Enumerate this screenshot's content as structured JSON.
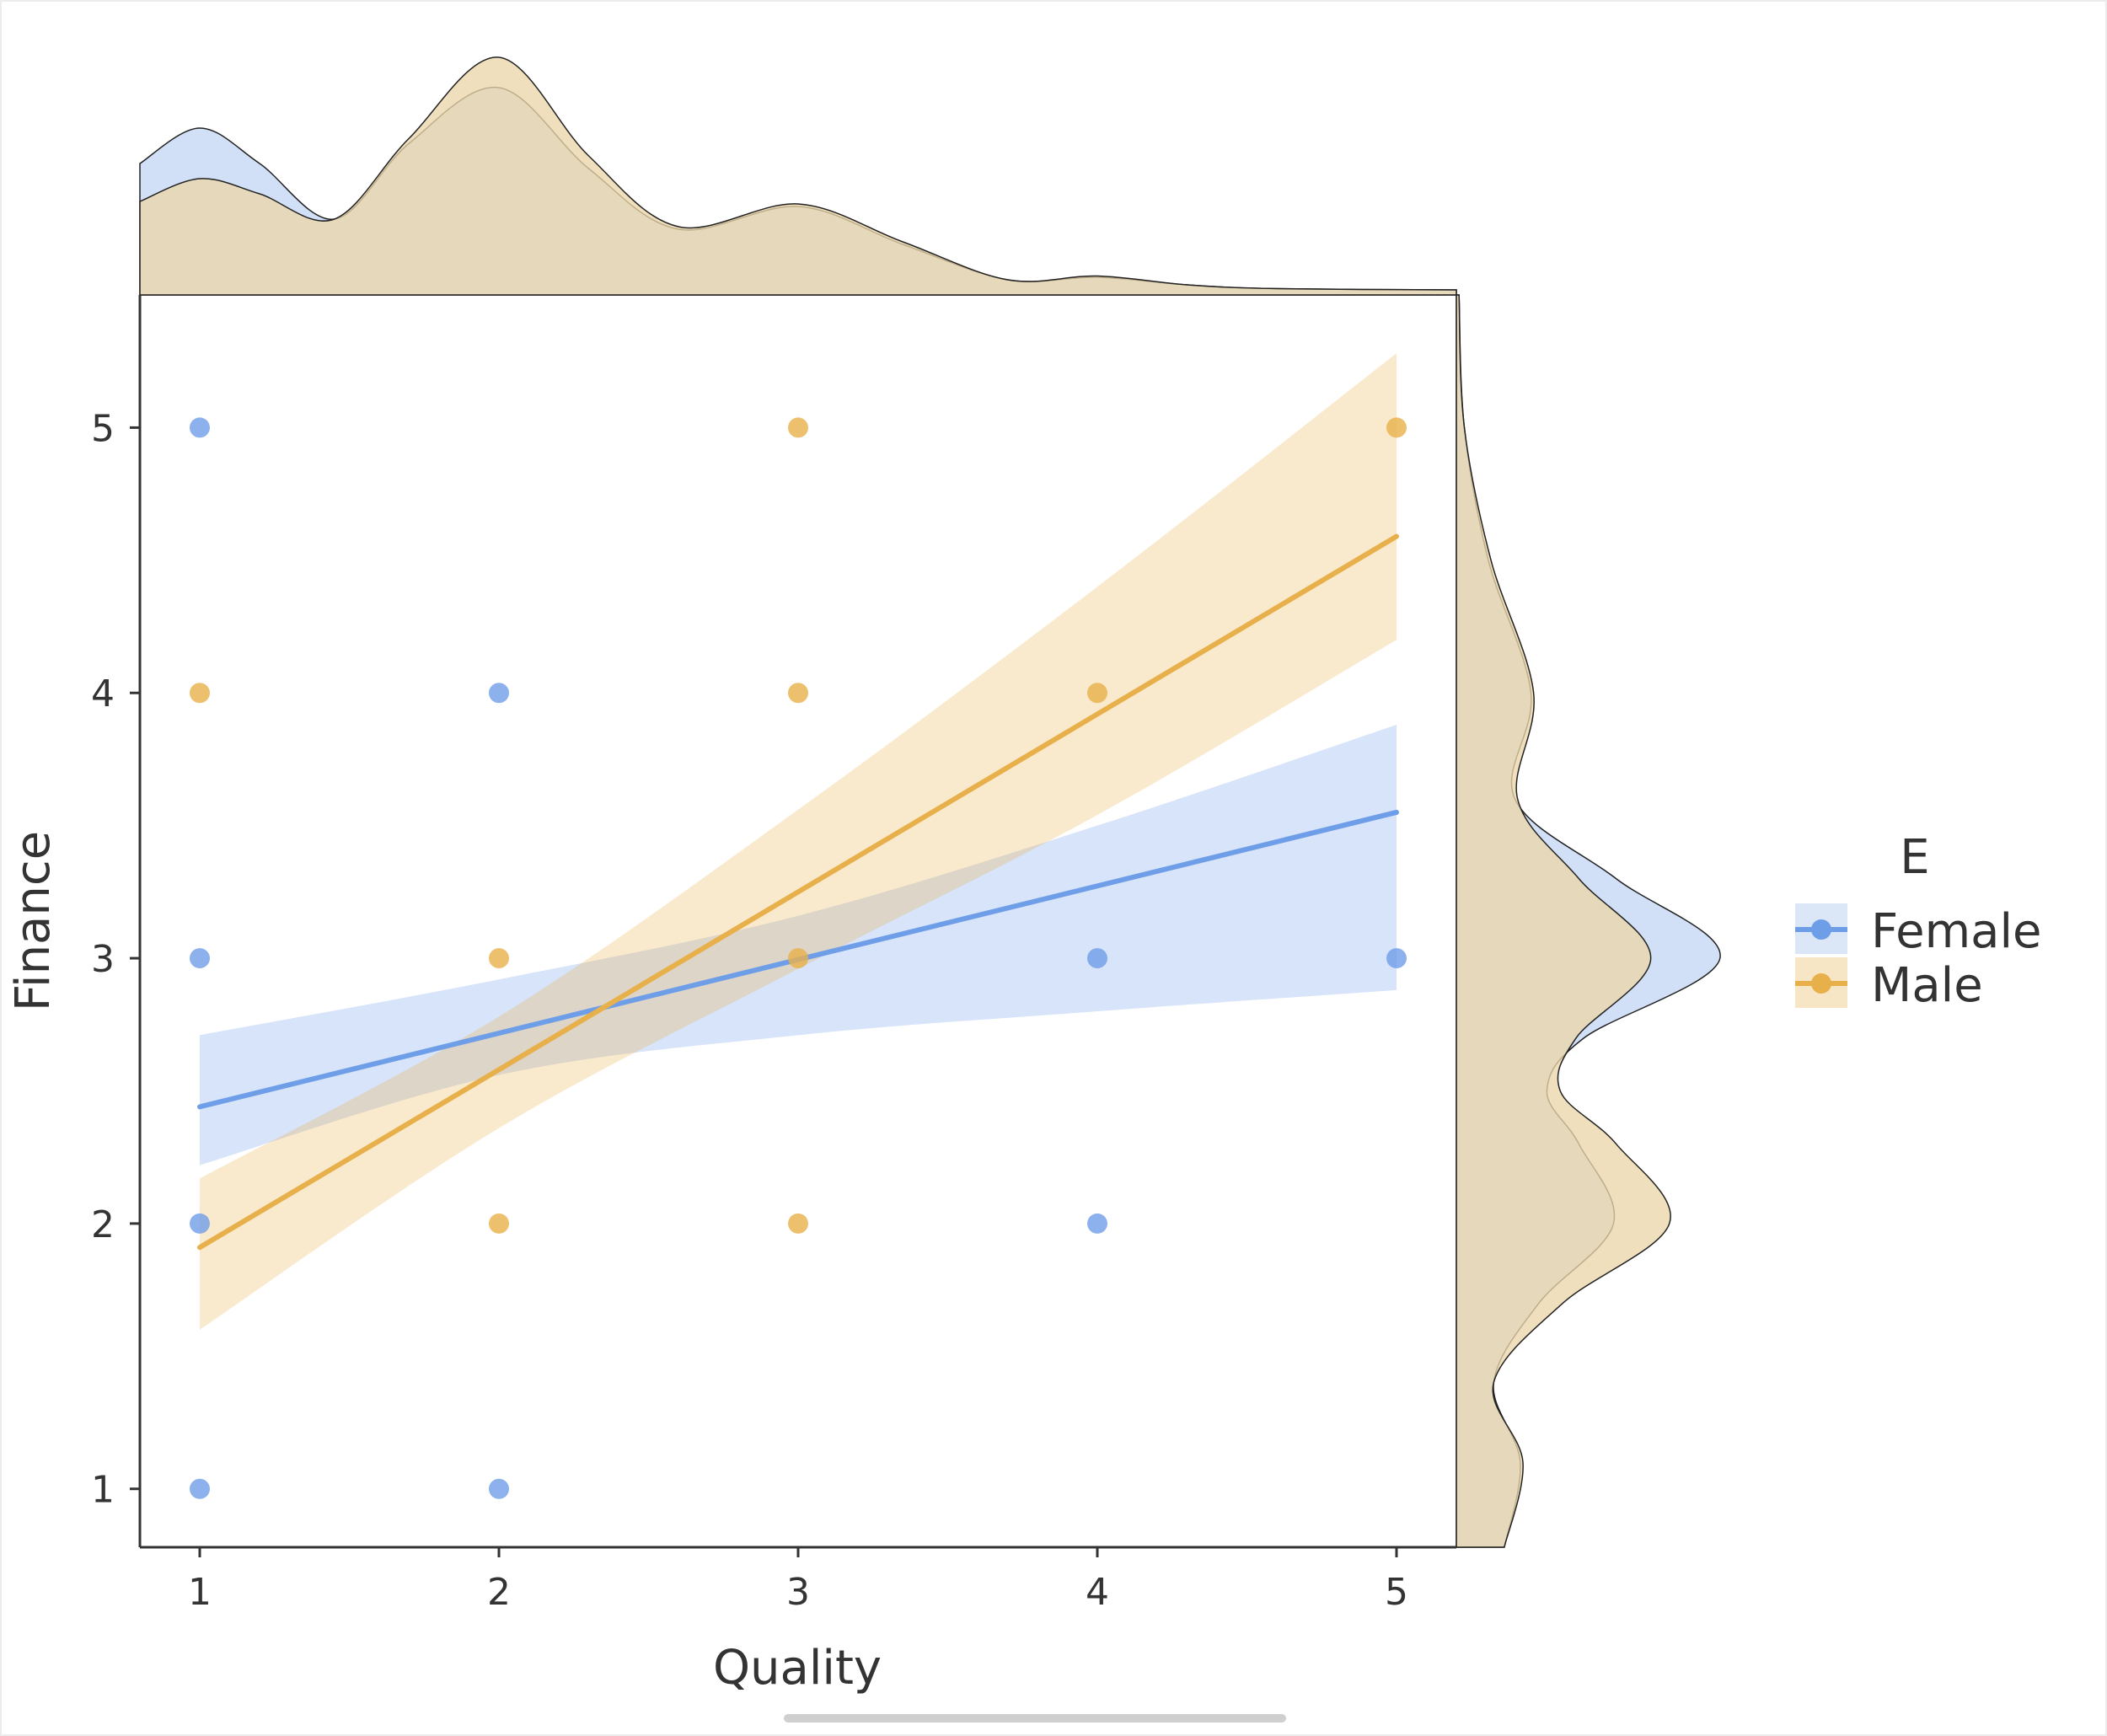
{
  "chart_data": {
    "type": "scatter",
    "title": "",
    "xlabel": "Quality",
    "ylabel": "Finance",
    "xlim": [
      0.8,
      5.2
    ],
    "ylim": [
      0.78,
      5.5
    ],
    "xticks": [
      "1",
      "2",
      "3",
      "4",
      "5"
    ],
    "yticks": [
      "1",
      "2",
      "3",
      "4",
      "5"
    ],
    "grid": false,
    "legend": {
      "title": "E",
      "placement": "right"
    },
    "marginals": {
      "top": "kde of Quality by E",
      "right": "kde of Finance by E"
    },
    "series": [
      {
        "name": "Female",
        "color": "#6f9ee8",
        "points": [
          [
            1,
            5
          ],
          [
            1,
            3
          ],
          [
            1,
            2
          ],
          [
            1,
            1
          ],
          [
            2,
            4
          ],
          [
            2,
            1
          ],
          [
            4,
            3
          ],
          [
            4,
            2
          ],
          [
            5,
            3
          ]
        ],
        "fit": {
          "x0": 1,
          "y0": 2.44,
          "x1": 5,
          "y1": 3.55
        },
        "ci_upper": [
          [
            1,
            2.71
          ],
          [
            2,
            2.92
          ],
          [
            3,
            3.16
          ],
          [
            4,
            3.5
          ],
          [
            5,
            3.88
          ]
        ],
        "ci_lower": [
          [
            1,
            2.22
          ],
          [
            2,
            2.56
          ],
          [
            3,
            2.71
          ],
          [
            4,
            2.8
          ],
          [
            5,
            2.88
          ]
        ]
      },
      {
        "name": "Male",
        "color": "#e8b04a",
        "points": [
          [
            1,
            4
          ],
          [
            2,
            3
          ],
          [
            2,
            2
          ],
          [
            3,
            5
          ],
          [
            3,
            4
          ],
          [
            3,
            3
          ],
          [
            3,
            2
          ],
          [
            4,
            4
          ],
          [
            5,
            5
          ]
        ],
        "fit": {
          "x0": 1,
          "y0": 1.91,
          "x1": 5,
          "y1": 4.59
        },
        "ci_upper": [
          [
            1,
            2.17
          ],
          [
            2,
            2.78
          ],
          [
            3,
            3.56
          ],
          [
            4,
            4.4
          ],
          [
            5,
            5.28
          ]
        ],
        "ci_lower": [
          [
            1,
            1.6
          ],
          [
            2,
            2.36
          ],
          [
            3,
            2.96
          ],
          [
            4,
            3.54
          ],
          [
            5,
            4.2
          ]
        ]
      }
    ],
    "marginal_x_density": {
      "x": [
        0.8,
        1.0,
        1.2,
        1.45,
        1.7,
        2.0,
        2.3,
        2.6,
        3.0,
        3.35,
        3.7,
        4.0,
        4.3,
        4.6,
        5.2
      ],
      "Female": [
        0.52,
        0.66,
        0.52,
        0.3,
        0.6,
        0.82,
        0.5,
        0.26,
        0.35,
        0.2,
        0.06,
        0.07,
        0.04,
        0.025,
        0.02
      ],
      "Male": [
        0.37,
        0.46,
        0.4,
        0.3,
        0.62,
        0.94,
        0.55,
        0.27,
        0.36,
        0.21,
        0.06,
        0.075,
        0.04,
        0.025,
        0.02
      ]
    },
    "marginal_y_density": {
      "y": [
        5.5,
        5.0,
        4.5,
        4.0,
        3.6,
        3.3,
        3.0,
        2.7,
        2.5,
        2.3,
        2.0,
        1.7,
        1.4,
        1.1,
        0.78
      ],
      "Female": [
        0.01,
        0.03,
        0.12,
        0.28,
        0.22,
        0.6,
        0.99,
        0.48,
        0.34,
        0.46,
        0.59,
        0.31,
        0.14,
        0.24,
        0.18
      ],
      "Male": [
        0.01,
        0.03,
        0.13,
        0.29,
        0.23,
        0.46,
        0.73,
        0.45,
        0.39,
        0.6,
        0.8,
        0.4,
        0.14,
        0.25,
        0.18
      ]
    }
  }
}
